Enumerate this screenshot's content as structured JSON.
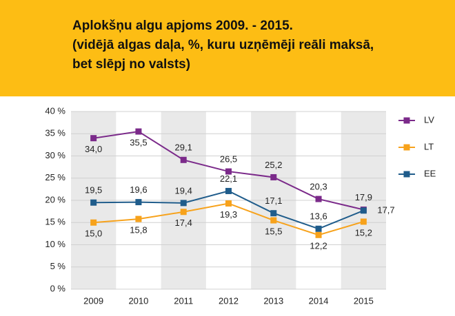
{
  "chart_data": {
    "type": "line",
    "title": [
      "Aplokšņu algu apjoms 2009. - 2015.",
      "(vidējā algas daļa, %, kuru uzņēmēji reāli maksā,",
      "bet slēpj no valsts)"
    ],
    "categories": [
      "2009",
      "2010",
      "2011",
      "2012",
      "2013",
      "2014",
      "2015"
    ],
    "series": [
      {
        "name": "LV",
        "color": "#7b2a8a",
        "values": [
          34.0,
          35.5,
          29.1,
          26.5,
          25.2,
          20.3,
          17.9
        ],
        "value_labels": [
          "34,0",
          "35,5",
          "29,1",
          "26,5",
          "25,2",
          "20,3",
          "17,9"
        ]
      },
      {
        "name": "LT",
        "color": "#f7a21b",
        "values": [
          15.0,
          15.8,
          17.4,
          19.3,
          15.5,
          12.2,
          15.2
        ],
        "value_labels": [
          "15,0",
          "15,8",
          "17,4",
          "19,3",
          "15,5",
          "12,2",
          "15,2"
        ]
      },
      {
        "name": "EE",
        "color": "#1f5c8b",
        "values": [
          19.5,
          19.6,
          19.4,
          22.1,
          17.1,
          13.6,
          17.7
        ],
        "value_labels": [
          "19,5",
          "19,6",
          "19,4",
          "22,1",
          "17,1",
          "13,6",
          "17,7"
        ]
      }
    ],
    "ylim": [
      0,
      40
    ],
    "yticks": [
      {
        "value": 0,
        "label": "0 %"
      },
      {
        "value": 5,
        "label": "5 %"
      },
      {
        "value": 10,
        "label": "10 %"
      },
      {
        "value": 15,
        "label": "15 %"
      },
      {
        "value": 20,
        "label": "20 %"
      },
      {
        "value": 25,
        "label": "25 %"
      },
      {
        "value": 30,
        "label": "30 %"
      },
      {
        "value": 35,
        "label": "35 %"
      },
      {
        "value": 40,
        "label": "40 %"
      }
    ],
    "grid": true
  }
}
